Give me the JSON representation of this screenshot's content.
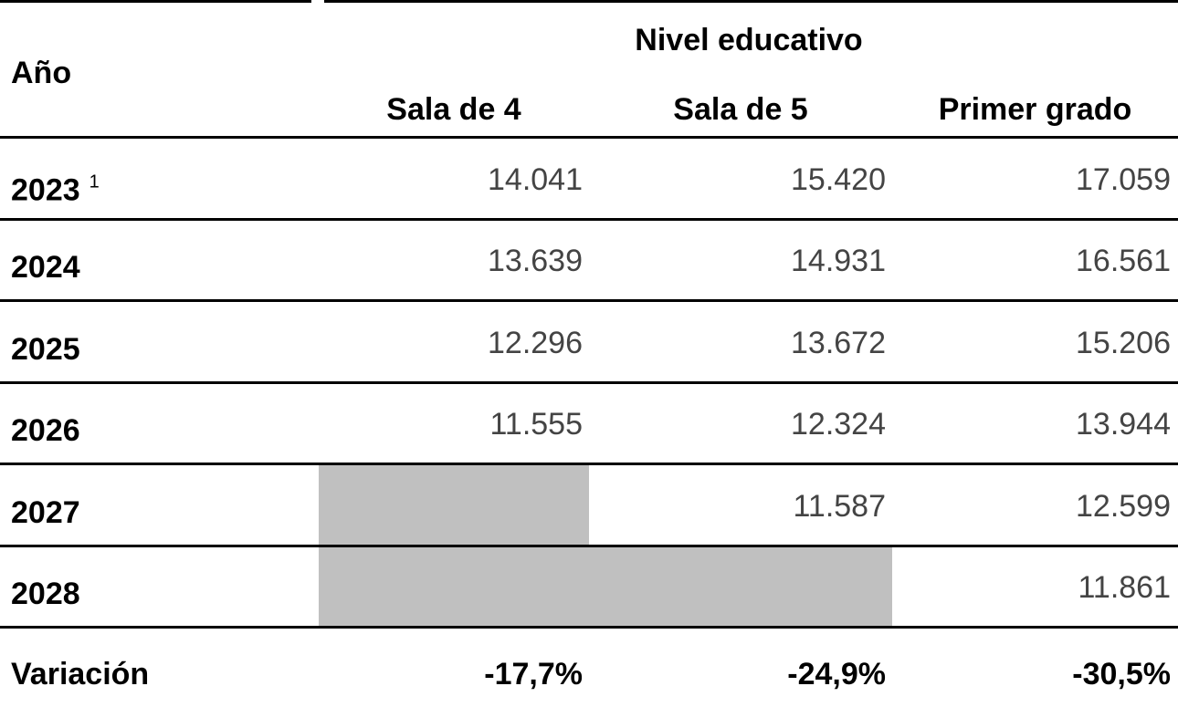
{
  "header": {
    "year_label": "Año",
    "group": "Nivel educativo",
    "columns": [
      "Sala de 4",
      "Sala de 5",
      "Primer grado"
    ]
  },
  "rows": [
    {
      "year": "2023",
      "note": "1",
      "values": [
        "14.041",
        "15.420",
        "17.059"
      ]
    },
    {
      "year": "2024",
      "values": [
        "13.639",
        "14.931",
        "16.561"
      ]
    },
    {
      "year": "2025",
      "values": [
        "12.296",
        "13.672",
        "15.206"
      ]
    },
    {
      "year": "2026",
      "values": [
        "11.555",
        "12.324",
        "13.944"
      ]
    },
    {
      "year": "2027",
      "values": [
        null,
        "11.587",
        "12.599"
      ]
    },
    {
      "year": "2028",
      "values": [
        null,
        null,
        "11.861"
      ]
    }
  ],
  "variation": {
    "label": "Variación",
    "values": [
      "-17,7%",
      "-24,9%",
      "-30,5%"
    ]
  }
}
